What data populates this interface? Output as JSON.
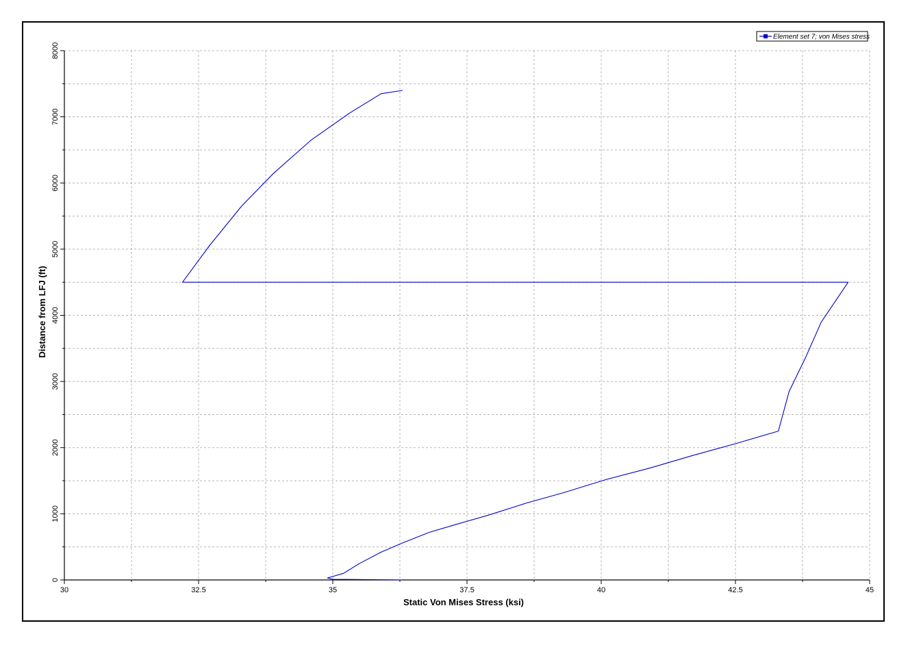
{
  "chart_data": {
    "type": "line",
    "title": "",
    "xlabel": "Static Von Mises Stress (ksi)",
    "ylabel": "Distance from LFJ (ft)",
    "xlim": [
      30,
      45
    ],
    "ylim": [
      0,
      8000
    ],
    "x_ticks": [
      30,
      32.5,
      35,
      37.5,
      40,
      42.5,
      45
    ],
    "x_tick_labels": [
      "30",
      "32.5",
      "35",
      "37.5",
      "40",
      "42.5",
      "45"
    ],
    "y_ticks": [
      0,
      1000,
      2000,
      3000,
      4000,
      5000,
      6000,
      7000,
      8000
    ],
    "y_tick_labels": [
      "0",
      "1000",
      "2000",
      "3000",
      "4000",
      "5000",
      "6000",
      "7000",
      "8000"
    ],
    "grid": true,
    "legend_position": "top-right",
    "series": [
      {
        "name": "Element set  7; von Mises stress",
        "color": "#0000cc",
        "points": [
          [
            36.3,
            0
          ],
          [
            35.7,
            5
          ],
          [
            35.0,
            10
          ],
          [
            34.9,
            30
          ],
          [
            35.2,
            100
          ],
          [
            35.5,
            250
          ],
          [
            35.9,
            420
          ],
          [
            36.3,
            560
          ],
          [
            36.8,
            720
          ],
          [
            37.3,
            840
          ],
          [
            37.9,
            980
          ],
          [
            38.6,
            1160
          ],
          [
            39.3,
            1320
          ],
          [
            40.1,
            1520
          ],
          [
            40.9,
            1690
          ],
          [
            41.7,
            1880
          ],
          [
            42.5,
            2060
          ],
          [
            43.3,
            2250
          ],
          [
            43.35,
            2400
          ],
          [
            43.5,
            2850
          ],
          [
            43.8,
            3350
          ],
          [
            44.1,
            3900
          ],
          [
            44.6,
            4500
          ],
          [
            32.2,
            4500
          ],
          [
            32.7,
            5050
          ],
          [
            33.3,
            5650
          ],
          [
            33.9,
            6150
          ],
          [
            34.6,
            6650
          ],
          [
            35.3,
            7050
          ],
          [
            35.9,
            7350
          ],
          [
            36.3,
            7400
          ]
        ]
      }
    ]
  }
}
